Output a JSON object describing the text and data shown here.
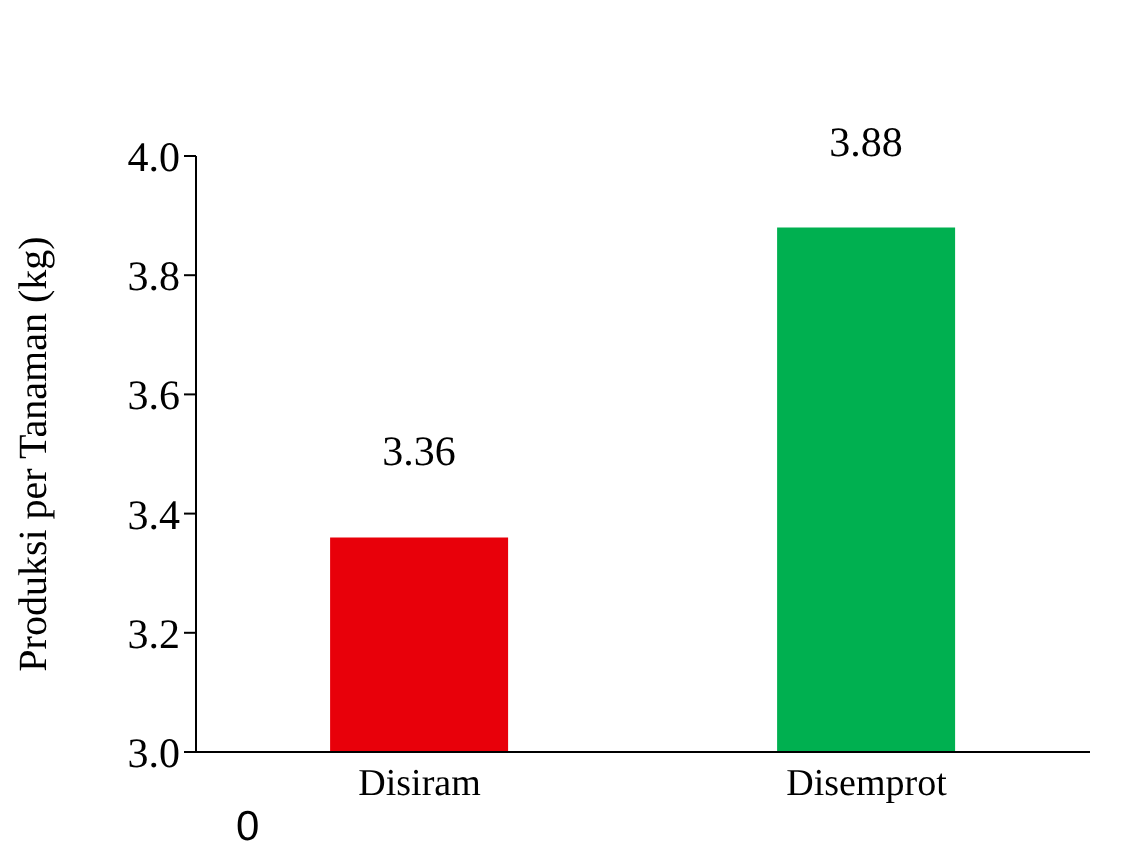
{
  "chart_data": {
    "type": "bar",
    "ylabel": "Produksi per Tanaman (kg)",
    "categories": [
      "Disiram",
      "Disemprot"
    ],
    "values": [
      3.36,
      3.88
    ],
    "colors": [
      "#e8000a",
      "#00b050"
    ],
    "ylim": [
      3.0,
      4.0
    ],
    "yticks": [
      {
        "value": 3.0,
        "label": "3.0"
      },
      3.2,
      3.4,
      3.6,
      3.8,
      {
        "value": 4.0,
        "label": "4.0"
      }
    ],
    "data_labels": true,
    "annotations": [
      "0"
    ]
  }
}
